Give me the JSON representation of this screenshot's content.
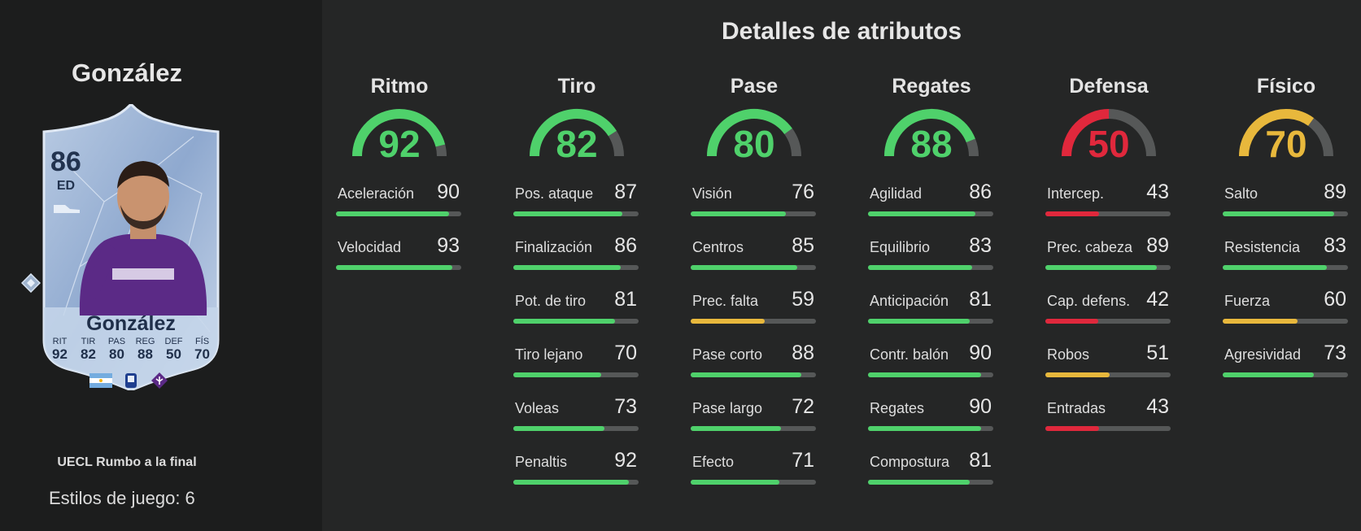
{
  "player": {
    "name": "González",
    "promo": "UECL Rumbo a la final",
    "playstyles": "Estilos de juego: 6"
  },
  "card": {
    "rating": "86",
    "position": "ED",
    "name": "González",
    "stats": [
      {
        "label": "RIT",
        "value": "92"
      },
      {
        "label": "TIR",
        "value": "82"
      },
      {
        "label": "PAS",
        "value": "80"
      },
      {
        "label": "REG",
        "value": "88"
      },
      {
        "label": "DEF",
        "value": "50"
      },
      {
        "label": "FÍS",
        "value": "70"
      }
    ]
  },
  "section_title": "Detalles de atributos",
  "colors": {
    "green": "#4fd16b",
    "yellow": "#e8b83c",
    "red": "#e0283c",
    "track": "#565858"
  },
  "categories": [
    {
      "name": "Ritmo",
      "value": 92,
      "attrs": [
        {
          "name": "Aceleración",
          "value": 90
        },
        {
          "name": "Velocidad",
          "value": 93
        }
      ]
    },
    {
      "name": "Tiro",
      "value": 82,
      "attrs": [
        {
          "name": "Pos. ataque",
          "value": 87
        },
        {
          "name": "Finalización",
          "value": 86
        },
        {
          "name": "Pot. de tiro",
          "value": 81
        },
        {
          "name": "Tiro lejano",
          "value": 70
        },
        {
          "name": "Voleas",
          "value": 73
        },
        {
          "name": "Penaltis",
          "value": 92
        }
      ]
    },
    {
      "name": "Pase",
      "value": 80,
      "attrs": [
        {
          "name": "Visión",
          "value": 76
        },
        {
          "name": "Centros",
          "value": 85
        },
        {
          "name": "Prec. falta",
          "value": 59
        },
        {
          "name": "Pase corto",
          "value": 88
        },
        {
          "name": "Pase largo",
          "value": 72
        },
        {
          "name": "Efecto",
          "value": 71
        }
      ]
    },
    {
      "name": "Regates",
      "value": 88,
      "attrs": [
        {
          "name": "Agilidad",
          "value": 86
        },
        {
          "name": "Equilibrio",
          "value": 83
        },
        {
          "name": "Anticipación",
          "value": 81
        },
        {
          "name": "Contr. balón",
          "value": 90
        },
        {
          "name": "Regates",
          "value": 90
        },
        {
          "name": "Compostura",
          "value": 81
        }
      ]
    },
    {
      "name": "Defensa",
      "value": 50,
      "attrs": [
        {
          "name": "Intercep.",
          "value": 43
        },
        {
          "name": "Prec. cabeza",
          "value": 89
        },
        {
          "name": "Cap. defens.",
          "value": 42
        },
        {
          "name": "Robos",
          "value": 51
        },
        {
          "name": "Entradas",
          "value": 43
        }
      ]
    },
    {
      "name": "Físico",
      "value": 70,
      "attrs": [
        {
          "name": "Salto",
          "value": 89
        },
        {
          "name": "Resistencia",
          "value": 83
        },
        {
          "name": "Fuerza",
          "value": 60
        },
        {
          "name": "Agresividad",
          "value": 73
        }
      ]
    }
  ]
}
